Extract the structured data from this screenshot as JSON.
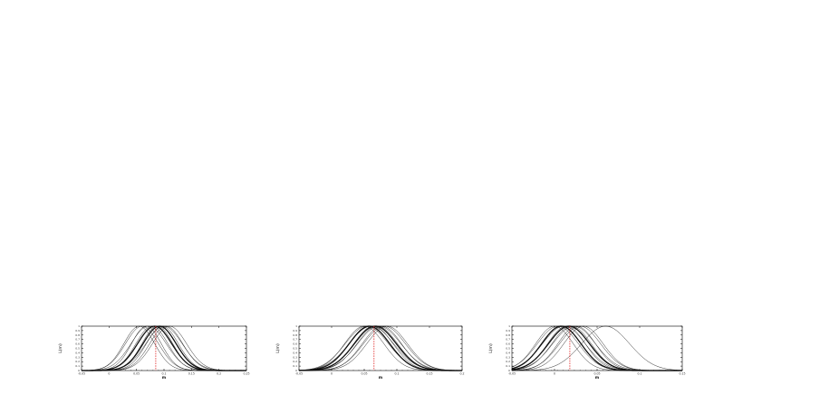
{
  "chart_data": [
    {
      "type": "line",
      "xlim": [
        -0.05,
        0.25
      ],
      "ylim": [
        0,
        1
      ],
      "xticks": [
        "-0.05",
        "0",
        "0.05",
        "0.1",
        "0.15",
        "0.2",
        "0.25"
      ],
      "yticks": [
        "0",
        "0.1",
        "0.2",
        "0.3",
        "0.4",
        "0.5",
        "0.6",
        "0.7",
        "0.8",
        "0.9",
        "1"
      ],
      "xlabel": "m",
      "ylabel": "L(m)",
      "reference_line": {
        "x": 0.085,
        "color": "#e02020",
        "style": "dotted"
      },
      "series": [
        {
          "mu": 0.055,
          "sigma": 0.028,
          "weight": "thin"
        },
        {
          "mu": 0.06,
          "sigma": 0.03,
          "weight": "thin"
        },
        {
          "mu": 0.068,
          "sigma": 0.027,
          "weight": "thin"
        },
        {
          "mu": 0.072,
          "sigma": 0.032,
          "weight": "thin"
        },
        {
          "mu": 0.078,
          "sigma": 0.029,
          "weight": "thin"
        },
        {
          "mu": 0.083,
          "sigma": 0.031,
          "weight": "thick"
        },
        {
          "mu": 0.088,
          "sigma": 0.028,
          "weight": "thin"
        },
        {
          "mu": 0.092,
          "sigma": 0.03,
          "weight": "thick"
        },
        {
          "mu": 0.097,
          "sigma": 0.029,
          "weight": "thin"
        },
        {
          "mu": 0.1,
          "sigma": 0.033,
          "weight": "thin"
        },
        {
          "mu": 0.104,
          "sigma": 0.03,
          "weight": "thin"
        },
        {
          "mu": 0.11,
          "sigma": 0.031,
          "weight": "thin"
        }
      ]
    },
    {
      "type": "line",
      "xlim": [
        -0.05,
        0.2
      ],
      "ylim": [
        0,
        1
      ],
      "xticks": [
        "-0.05",
        "0",
        "0.05",
        "0.1",
        "0.15",
        "0.2"
      ],
      "yticks": [
        "0",
        "0.1",
        "0.2",
        "0.3",
        "0.4",
        "0.5",
        "0.6",
        "0.7",
        "0.8",
        "0.9",
        "1"
      ],
      "xlabel": "m",
      "ylabel": "L(m)",
      "reference_line": {
        "x": 0.065,
        "color": "#e02020",
        "style": "dotted"
      },
      "series": [
        {
          "mu": 0.05,
          "sigma": 0.03,
          "weight": "thin"
        },
        {
          "mu": 0.054,
          "sigma": 0.033,
          "weight": "thin"
        },
        {
          "mu": 0.058,
          "sigma": 0.031,
          "weight": "thick"
        },
        {
          "mu": 0.061,
          "sigma": 0.034,
          "weight": "thin"
        },
        {
          "mu": 0.064,
          "sigma": 0.03,
          "weight": "thin"
        },
        {
          "mu": 0.067,
          "sigma": 0.032,
          "weight": "thick"
        },
        {
          "mu": 0.07,
          "sigma": 0.031,
          "weight": "thin"
        },
        {
          "mu": 0.073,
          "sigma": 0.033,
          "weight": "thin"
        },
        {
          "mu": 0.077,
          "sigma": 0.03,
          "weight": "thin"
        },
        {
          "mu": 0.081,
          "sigma": 0.032,
          "weight": "thin"
        },
        {
          "mu": 0.085,
          "sigma": 0.031,
          "weight": "thin"
        }
      ]
    },
    {
      "type": "line",
      "xlim": [
        -0.05,
        0.15
      ],
      "ylim": [
        0,
        1
      ],
      "xticks": [
        "-0.05",
        "0",
        "0.05",
        "0.1",
        "0.15"
      ],
      "yticks": [
        "0",
        "0.1",
        "0.2",
        "0.3",
        "0.4",
        "0.5",
        "0.6",
        "0.7",
        "0.8",
        "0.9",
        "1"
      ],
      "xlabel": "m",
      "ylabel": "L(m)",
      "reference_line": {
        "x": 0.018,
        "color": "#e02020",
        "style": "dotted"
      },
      "series": [
        {
          "mu": 0.0,
          "sigma": 0.022,
          "weight": "thin"
        },
        {
          "mu": 0.004,
          "sigma": 0.024,
          "weight": "thin"
        },
        {
          "mu": 0.008,
          "sigma": 0.023,
          "weight": "thick"
        },
        {
          "mu": 0.011,
          "sigma": 0.025,
          "weight": "thin"
        },
        {
          "mu": 0.014,
          "sigma": 0.022,
          "weight": "thin"
        },
        {
          "mu": 0.017,
          "sigma": 0.024,
          "weight": "thick"
        },
        {
          "mu": 0.02,
          "sigma": 0.023,
          "weight": "thin"
        },
        {
          "mu": 0.023,
          "sigma": 0.025,
          "weight": "thin"
        },
        {
          "mu": 0.026,
          "sigma": 0.022,
          "weight": "thin"
        },
        {
          "mu": 0.03,
          "sigma": 0.024,
          "weight": "thin"
        },
        {
          "mu": 0.034,
          "sigma": 0.023,
          "weight": "thin"
        },
        {
          "mu": 0.06,
          "sigma": 0.028,
          "weight": "thin"
        }
      ]
    }
  ]
}
